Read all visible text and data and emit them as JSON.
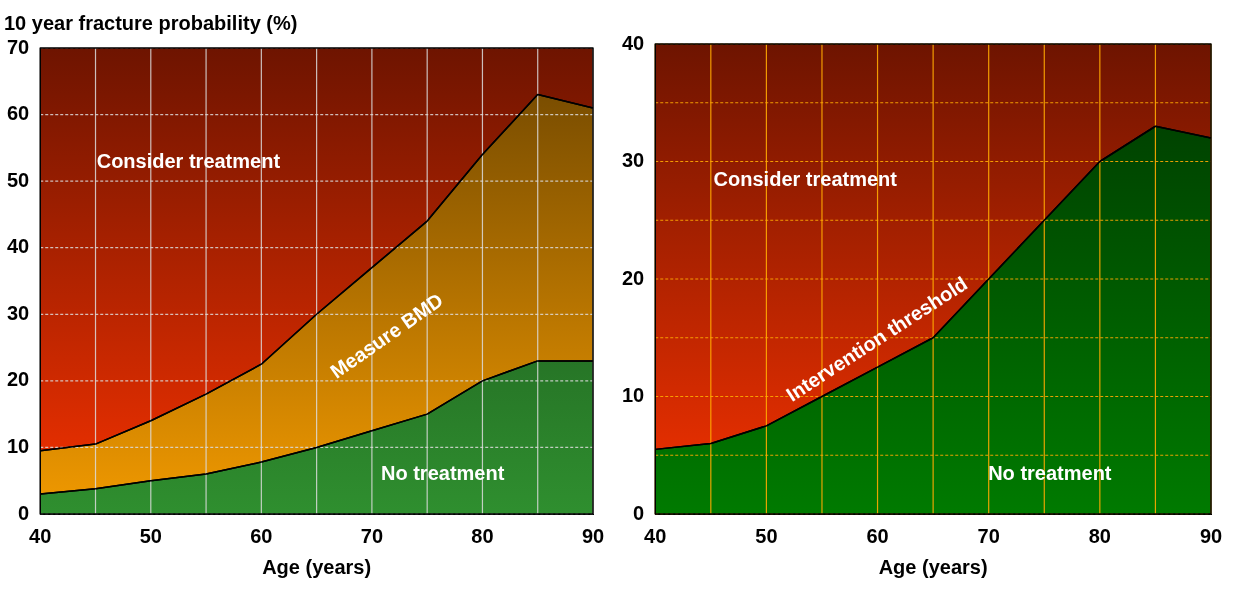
{
  "chart_data": [
    {
      "type": "area",
      "title": "10 year fracture probability (%)",
      "xlabel": "Age (years)",
      "x": [
        40,
        45,
        50,
        55,
        60,
        65,
        70,
        75,
        80,
        85,
        90
      ],
      "series": [
        {
          "name": "No treatment",
          "color": "#2f8f2f",
          "values": [
            3,
            3.8,
            5,
            6,
            7.8,
            10,
            12.5,
            15,
            20,
            23,
            23
          ]
        },
        {
          "name": "Measure BMD",
          "color": "#f29a00",
          "values": [
            9.5,
            10.5,
            14,
            18,
            22.5,
            30,
            37,
            44,
            54,
            63,
            61
          ]
        }
      ],
      "annotations": [
        "Consider treatment"
      ],
      "xlim": [
        40,
        90
      ],
      "xticks": [
        40,
        {
          "value": 45,
          "label": null
        },
        50,
        {
          "value": 55,
          "label": null
        },
        60,
        {
          "value": 65,
          "label": null
        },
        70,
        {
          "value": 75,
          "label": null
        },
        80,
        {
          "value": 85,
          "label": null
        },
        90
      ],
      "ylim": [
        0,
        70
      ],
      "yticks": [
        0,
        10,
        20,
        30,
        40,
        50,
        60,
        70
      ],
      "grid": true,
      "legend": false,
      "marker": "none"
    },
    {
      "type": "area",
      "xlabel": "Age (years)",
      "x": [
        40,
        45,
        50,
        55,
        60,
        65,
        70,
        75,
        80,
        85,
        90
      ],
      "series": [
        {
          "name": "No treatment",
          "color": "#007a00",
          "values": [
            5.5,
            6,
            7.5,
            10,
            12.5,
            15,
            20,
            25,
            30,
            33,
            32
          ]
        }
      ],
      "annotations": [
        "Consider treatment",
        "Intervention threshold"
      ],
      "xlim": [
        40,
        90
      ],
      "xticks": [
        40,
        {
          "value": 45,
          "label": null
        },
        50,
        {
          "value": 55,
          "label": null
        },
        60,
        {
          "value": 65,
          "label": null
        },
        70,
        {
          "value": 75,
          "label": null
        },
        80,
        {
          "value": 85,
          "label": null
        },
        90
      ],
      "ylim": [
        0,
        40
      ],
      "yticks": [
        0,
        {
          "value": 5,
          "label": null
        },
        10,
        {
          "value": 15,
          "label": null
        },
        20,
        {
          "value": 25,
          "label": null
        },
        30,
        {
          "value": 35,
          "label": null
        },
        40
      ],
      "grid": true,
      "legend": false,
      "marker": "none"
    }
  ]
}
